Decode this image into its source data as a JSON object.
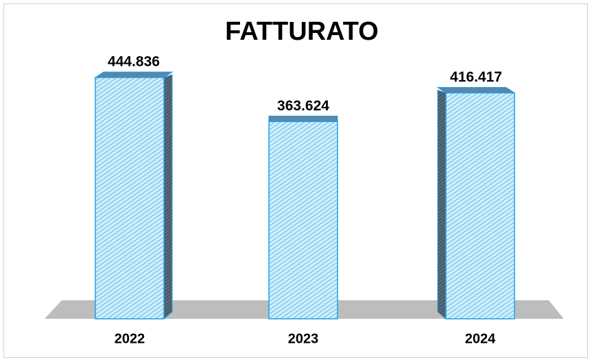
{
  "chart_data": {
    "type": "bar3d",
    "title": "FATTURATO",
    "categories": [
      "2022",
      "2023",
      "2024"
    ],
    "values": [
      444836,
      363624,
      416417
    ],
    "value_labels": [
      "444.836",
      "363.624",
      "416.417"
    ],
    "color": "#bfe6f8"
  }
}
